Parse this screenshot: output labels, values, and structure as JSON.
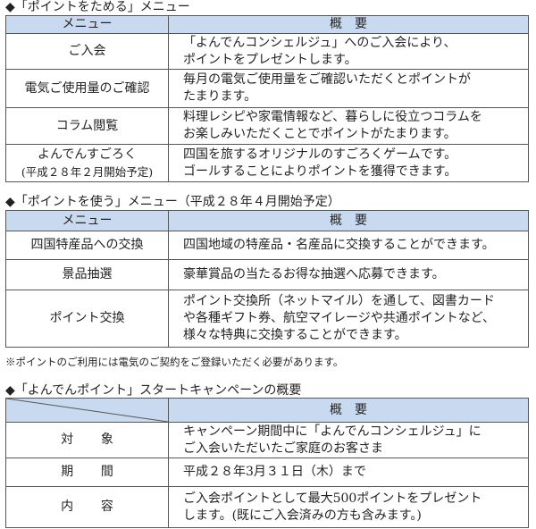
{
  "section1": {
    "title": "◆「ポイントをためる」メニュー",
    "header": {
      "menu": "メニュー",
      "summary": "概　要"
    },
    "rows": [
      {
        "menu": "ご入会",
        "lines": [
          "「よんでんコンシェルジュ」へのご入会により、",
          "ポイントをプレゼントします。"
        ]
      },
      {
        "menu": "電気ご使用量のご確認",
        "lines": [
          "毎月の電気ご使用量をご確認いただくとポイントが",
          "たまります。"
        ]
      },
      {
        "menu": "コラム閲覧",
        "lines": [
          "料理レシピや家電情報など、暮らしに役立つコラムを",
          "お楽しみいただくことでポイントがたまります。"
        ]
      },
      {
        "menu": "よんでんすごろく",
        "menu_sub": "(平成２８年２月開始予定)",
        "lines": [
          "四国を旅するオリジナルのすごろくゲームです。",
          "ゴールすることによりポイントを獲得できます。"
        ]
      }
    ]
  },
  "section2": {
    "title": "◆「ポイントを使う」メニュー（平成２８年４月開始予定）",
    "header": {
      "menu": "メニュー",
      "summary": "概　要"
    },
    "rows": [
      {
        "menu": "四国特産品への交換",
        "lines": [
          "四国地域の特産品・名産品に交換することができます。"
        ]
      },
      {
        "menu": "景品抽選",
        "lines": [
          "豪華賞品の当たるお得な抽選へ応募できます。"
        ]
      },
      {
        "menu": "ポイント交換",
        "lines": [
          "ポイント交換所（ネットマイル）を通して、図書カード",
          "や各種ギフト券、航空マイレージや共通ポイントなど、",
          "様々な特典に交換することができます。"
        ]
      }
    ],
    "note": "※ポイントのご利用には電気のご契約をご登録いただく必要があります。"
  },
  "section3": {
    "title": "◆「よんでんポイント」スタートキャンペーンの概要",
    "header": {
      "summary": "概　要"
    },
    "rows": [
      {
        "menu": "対象",
        "lines": [
          "キャンペーン期間中に「よんでんコンシェルジュ」に",
          "ご入会いただいたご家庭のお客さま"
        ]
      },
      {
        "menu": "期間",
        "lines": [
          "平成２８年3月３１日（木）まで"
        ]
      },
      {
        "menu": "内容",
        "lines": [
          "ご入会ポイントとして最大500ポイントをプレゼント",
          "します。(既にご入会済みの方も含みます。)"
        ]
      }
    ]
  },
  "colors": {
    "header_bg": "#c9daf0",
    "border": "#555555"
  }
}
